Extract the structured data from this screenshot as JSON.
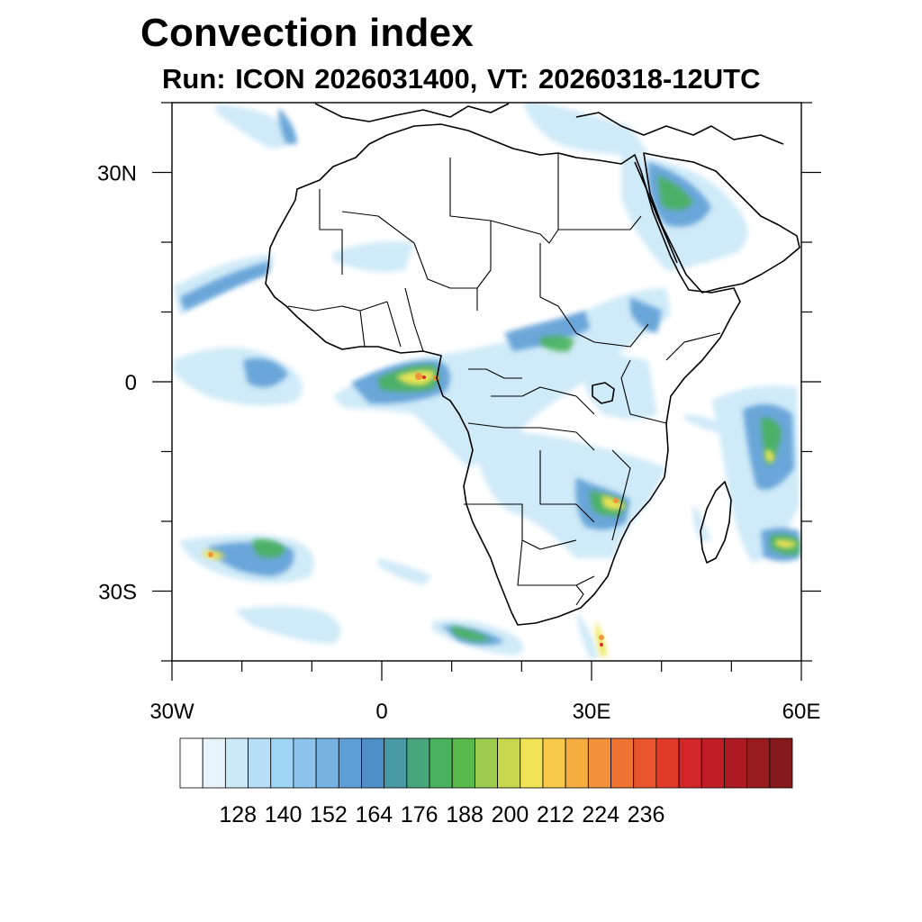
{
  "title": "Convection index",
  "subtitle": "Run: ICON 2026031400,  VT: 20260318-12UTC",
  "map": {
    "lon_range": [
      -30,
      60
    ],
    "lat_range": [
      -40,
      40
    ],
    "x_ticks": [
      {
        "lon": -30,
        "label": "30W"
      },
      {
        "lon": 0,
        "label": "0"
      },
      {
        "lon": 30,
        "label": "30E"
      },
      {
        "lon": 60,
        "label": "60E"
      }
    ],
    "y_ticks": [
      {
        "lat": 30,
        "label": "30N"
      },
      {
        "lat": 0,
        "label": "0"
      },
      {
        "lat": -30,
        "label": "30S"
      }
    ],
    "minor_lon_step": 10,
    "minor_lat_step": 10
  },
  "colorbar": {
    "levels_shown": [
      "128",
      "140",
      "152",
      "164",
      "176",
      "188",
      "200",
      "212",
      "224",
      "236"
    ],
    "colors": [
      "#ffffff",
      "#e8f4fb",
      "#cde9f8",
      "#b6def6",
      "#9fd4f4",
      "#8cc4ec",
      "#76b2e2",
      "#5f9fd6",
      "#4f8ec6",
      "#4a9aa6",
      "#47a67c",
      "#48b25c",
      "#58ba4a",
      "#9ccb4e",
      "#c8d84e",
      "#f0e454",
      "#f7c84a",
      "#f6ad40",
      "#f2913a",
      "#ee7232",
      "#e8552c",
      "#df3a2a",
      "#d22628",
      "#c11d26",
      "#ae1a22",
      "#981c1e",
      "#861a1a"
    ]
  },
  "precip_colors": {
    "light": "#cde9f8",
    "blue": "#8cc4ec",
    "mid": "#5f9fd6",
    "green": "#48b25c",
    "yellow": "#f0e454",
    "orange": "#f2913a",
    "red": "#d22628"
  }
}
